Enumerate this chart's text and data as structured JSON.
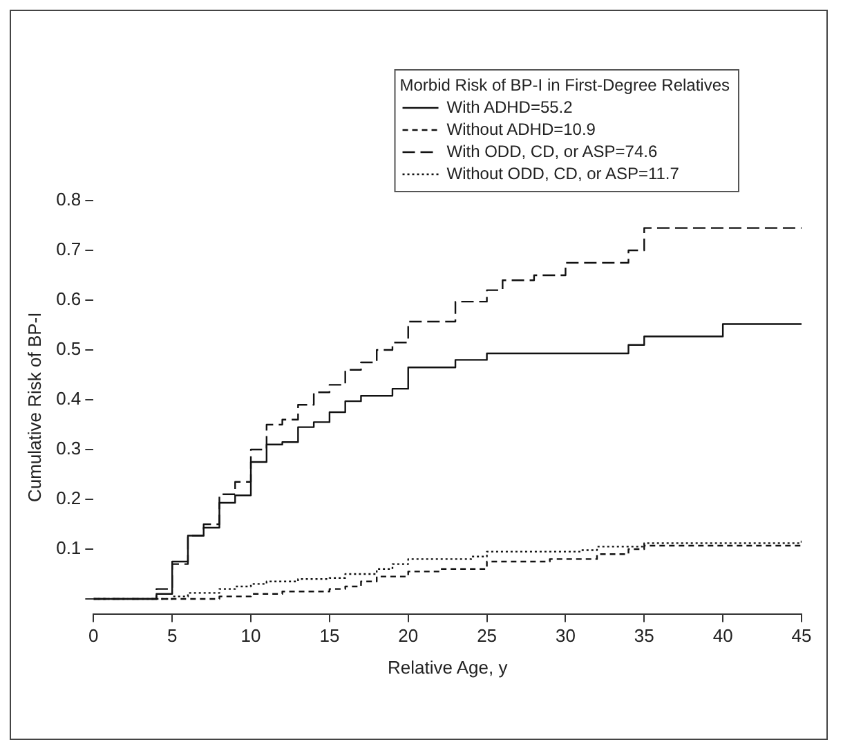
{
  "chart_data": {
    "type": "step",
    "xlabel": "Relative Age, y",
    "ylabel": "Cumulative Risk of BP-I",
    "legend_title": "Morbid Risk of BP-I in First-Degree Relatives",
    "legend": "top right",
    "grid": false,
    "xlim": [
      0,
      45
    ],
    "xticks": [
      0,
      5,
      10,
      15,
      20,
      25,
      30,
      35,
      40,
      45
    ],
    "ylim": [
      -0.03,
      0.8
    ],
    "yticks": [
      {
        "value": 0,
        "label": null
      },
      0.1,
      0.2,
      0.3,
      0.4,
      0.5,
      0.6,
      0.7,
      0.8
    ],
    "series": [
      {
        "name": "With ADHD=55.2",
        "color": "#111111",
        "line_style": "solid",
        "x": [
          0,
          4,
          5,
          6,
          7,
          8,
          9,
          10,
          11,
          12,
          13,
          14,
          15,
          16,
          17,
          19,
          20,
          23,
          25,
          34,
          35,
          40,
          45
        ],
        "values": [
          0,
          0.01,
          0.075,
          0.127,
          0.143,
          0.193,
          0.208,
          0.275,
          0.31,
          0.315,
          0.345,
          0.355,
          0.375,
          0.397,
          0.408,
          0.422,
          0.465,
          0.48,
          0.493,
          0.51,
          0.527,
          0.552,
          0.552
        ]
      },
      {
        "name": "Without ADHD=10.9",
        "color": "#111111",
        "line_style": "dashed",
        "x": [
          0,
          8,
          10,
          12,
          15,
          16,
          17,
          18,
          20,
          22,
          25,
          29,
          32,
          34,
          35,
          45
        ],
        "values": [
          0,
          0.005,
          0.01,
          0.015,
          0.02,
          0.025,
          0.035,
          0.045,
          0.055,
          0.06,
          0.075,
          0.08,
          0.09,
          0.1,
          0.107,
          0.109
        ]
      },
      {
        "name": "With ODD, CD, or ASP=74.6",
        "color": "#111111",
        "line_style": "long-dashed",
        "x": [
          0,
          4,
          5,
          6,
          7,
          8,
          9,
          10,
          11,
          12,
          13,
          14,
          15,
          16,
          17,
          18,
          19,
          20,
          22,
          23,
          25,
          26,
          28,
          30,
          34,
          35,
          45
        ],
        "values": [
          0,
          0.02,
          0.07,
          0.127,
          0.15,
          0.21,
          0.235,
          0.3,
          0.35,
          0.36,
          0.39,
          0.415,
          0.43,
          0.46,
          0.475,
          0.5,
          0.515,
          0.557,
          0.557,
          0.597,
          0.62,
          0.64,
          0.65,
          0.675,
          0.7,
          0.745,
          0.745
        ]
      },
      {
        "name": "Without ODD, CD, or ASP=11.7",
        "color": "#111111",
        "line_style": "dotted",
        "x": [
          0,
          5,
          6,
          8,
          9,
          10,
          11,
          13,
          15,
          16,
          18,
          19,
          20,
          24,
          25,
          31,
          32,
          35,
          45
        ],
        "values": [
          0,
          0.005,
          0.012,
          0.02,
          0.025,
          0.03,
          0.035,
          0.04,
          0.042,
          0.05,
          0.06,
          0.07,
          0.08,
          0.085,
          0.095,
          0.098,
          0.105,
          0.112,
          0.117
        ]
      }
    ]
  }
}
